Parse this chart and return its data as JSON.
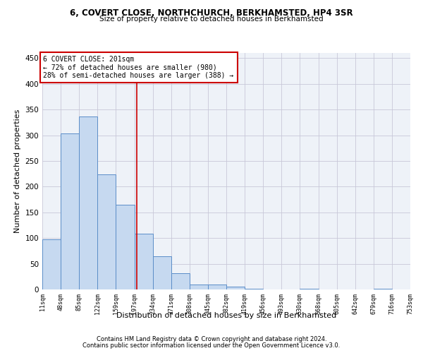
{
  "title1": "6, COVERT CLOSE, NORTHCHURCH, BERKHAMSTED, HP4 3SR",
  "title2": "Size of property relative to detached houses in Berkhamsted",
  "xlabel": "Distribution of detached houses by size in Berkhamsted",
  "ylabel": "Number of detached properties",
  "footnote1": "Contains HM Land Registry data © Crown copyright and database right 2024.",
  "footnote2": "Contains public sector information licensed under the Open Government Licence v3.0.",
  "property_size": 201,
  "annotation_line1": "6 COVERT CLOSE: 201sqm",
  "annotation_line2": "← 72% of detached houses are smaller (980)",
  "annotation_line3": "28% of semi-detached houses are larger (388) →",
  "bar_edges": [
    11,
    48,
    85,
    122,
    159,
    197,
    234,
    271,
    308,
    345,
    382,
    419,
    456,
    493,
    530,
    568,
    605,
    642,
    679,
    716,
    753
  ],
  "bar_heights": [
    97,
    303,
    337,
    224,
    165,
    108,
    65,
    32,
    10,
    10,
    6,
    1,
    0,
    0,
    1,
    0,
    0,
    0,
    1,
    0
  ],
  "bar_color": "#c6d9f0",
  "bar_edge_color": "#5b8dc8",
  "vline_color": "#cc0000",
  "annotation_box_color": "#cc0000",
  "grid_color": "#c8c8d8",
  "bg_color": "#eef2f8",
  "ylim": [
    0,
    460
  ],
  "yticks": [
    0,
    50,
    100,
    150,
    200,
    250,
    300,
    350,
    400,
    450
  ]
}
